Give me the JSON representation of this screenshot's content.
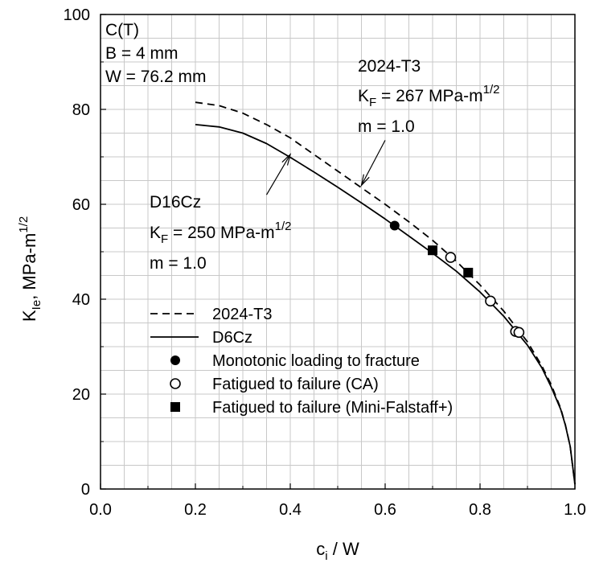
{
  "chart_data": {
    "type": "line",
    "xlabel": {
      "main": "c",
      "sub": "i",
      "rest": " / W"
    },
    "ylabel": {
      "main": "K",
      "sub": "Ie",
      "rest": ", MPa-m",
      "sup": "1/2"
    },
    "xlim": [
      0.0,
      1.0
    ],
    "ylim": [
      0,
      100
    ],
    "x_ticks": [
      0.0,
      0.2,
      0.4,
      0.6,
      0.8,
      1.0
    ],
    "x_tick_labels": [
      "0.0",
      "0.2",
      "0.4",
      "0.6",
      "0.8",
      "1.0"
    ],
    "y_ticks": [
      0,
      20,
      40,
      60,
      80,
      100
    ],
    "y_tick_labels": [
      "0",
      "20",
      "40",
      "60",
      "80",
      "100"
    ],
    "grid": true,
    "legend": {
      "placement": "lower-left",
      "entries": [
        {
          "label": "2024-T3",
          "kind": "dashed-line"
        },
        {
          "label": "D6Cz",
          "kind": "solid-line"
        },
        {
          "label": "Monotonic loading to fracture",
          "kind": "filled-circle"
        },
        {
          "label": "Fatigued to failure (CA)",
          "kind": "open-circle"
        },
        {
          "label": "Fatigued to failure (Mini-Falstaff+)",
          "kind": "filled-square"
        }
      ]
    },
    "annotations": {
      "specimen": [
        "C(T)",
        "B = 4 mm",
        "W = 76.2 mm"
      ],
      "series_2024": {
        "name": "2024-T3",
        "kf_prefix": "K",
        "kf_sub": "F",
        "kf_value": " = 267 MPa-m",
        "kf_sup": "1/2",
        "m": "m = 1.0"
      },
      "series_d16": {
        "name": "D16Cz",
        "kf_prefix": "K",
        "kf_sub": "F",
        "kf_value": " = 250 MPa-m",
        "kf_sup": "1/2",
        "m": "m = 1.0"
      }
    },
    "series": [
      {
        "name": "2024-T3",
        "style": "dashed",
        "x": [
          0.2,
          0.25,
          0.3,
          0.35,
          0.4,
          0.45,
          0.5,
          0.55,
          0.6,
          0.65,
          0.7,
          0.75,
          0.8,
          0.85,
          0.9,
          0.93,
          0.95,
          0.97,
          0.98,
          0.99,
          1.0
        ],
        "y": [
          81.5,
          80.8,
          79.2,
          76.8,
          74.0,
          70.5,
          67.0,
          63.5,
          60.0,
          56.3,
          52.4,
          48.0,
          43.0,
          37.5,
          31.0,
          26.0,
          22.0,
          17.0,
          13.5,
          9.0,
          1.0
        ]
      },
      {
        "name": "D6Cz",
        "style": "solid",
        "x": [
          0.2,
          0.25,
          0.3,
          0.35,
          0.4,
          0.45,
          0.5,
          0.55,
          0.6,
          0.65,
          0.7,
          0.75,
          0.8,
          0.85,
          0.9,
          0.93,
          0.95,
          0.97,
          0.98,
          0.99,
          1.0
        ],
        "y": [
          76.8,
          76.3,
          75.0,
          72.8,
          69.9,
          66.8,
          63.6,
          60.3,
          56.9,
          53.3,
          49.7,
          45.9,
          41.5,
          36.4,
          30.3,
          25.6,
          21.5,
          16.8,
          13.4,
          9.0,
          1.0
        ]
      }
    ],
    "markers": {
      "monotonic": [
        {
          "x": 0.62,
          "y": 55.5
        }
      ],
      "fatigue_ca": [
        {
          "x": 0.738,
          "y": 48.8
        },
        {
          "x": 0.822,
          "y": 39.6
        },
        {
          "x": 0.875,
          "y": 33.2
        },
        {
          "x": 0.882,
          "y": 33.0
        }
      ],
      "mini_falstaff": [
        {
          "x": 0.7,
          "y": 50.3
        },
        {
          "x": 0.775,
          "y": 45.6
        }
      ]
    },
    "arrows": [
      {
        "from": [
          0.55,
          64.0
        ],
        "to": [
          0.6,
          73.5
        ]
      },
      {
        "from": [
          0.4,
          70.5
        ],
        "to": [
          0.35,
          62.0
        ]
      }
    ]
  }
}
